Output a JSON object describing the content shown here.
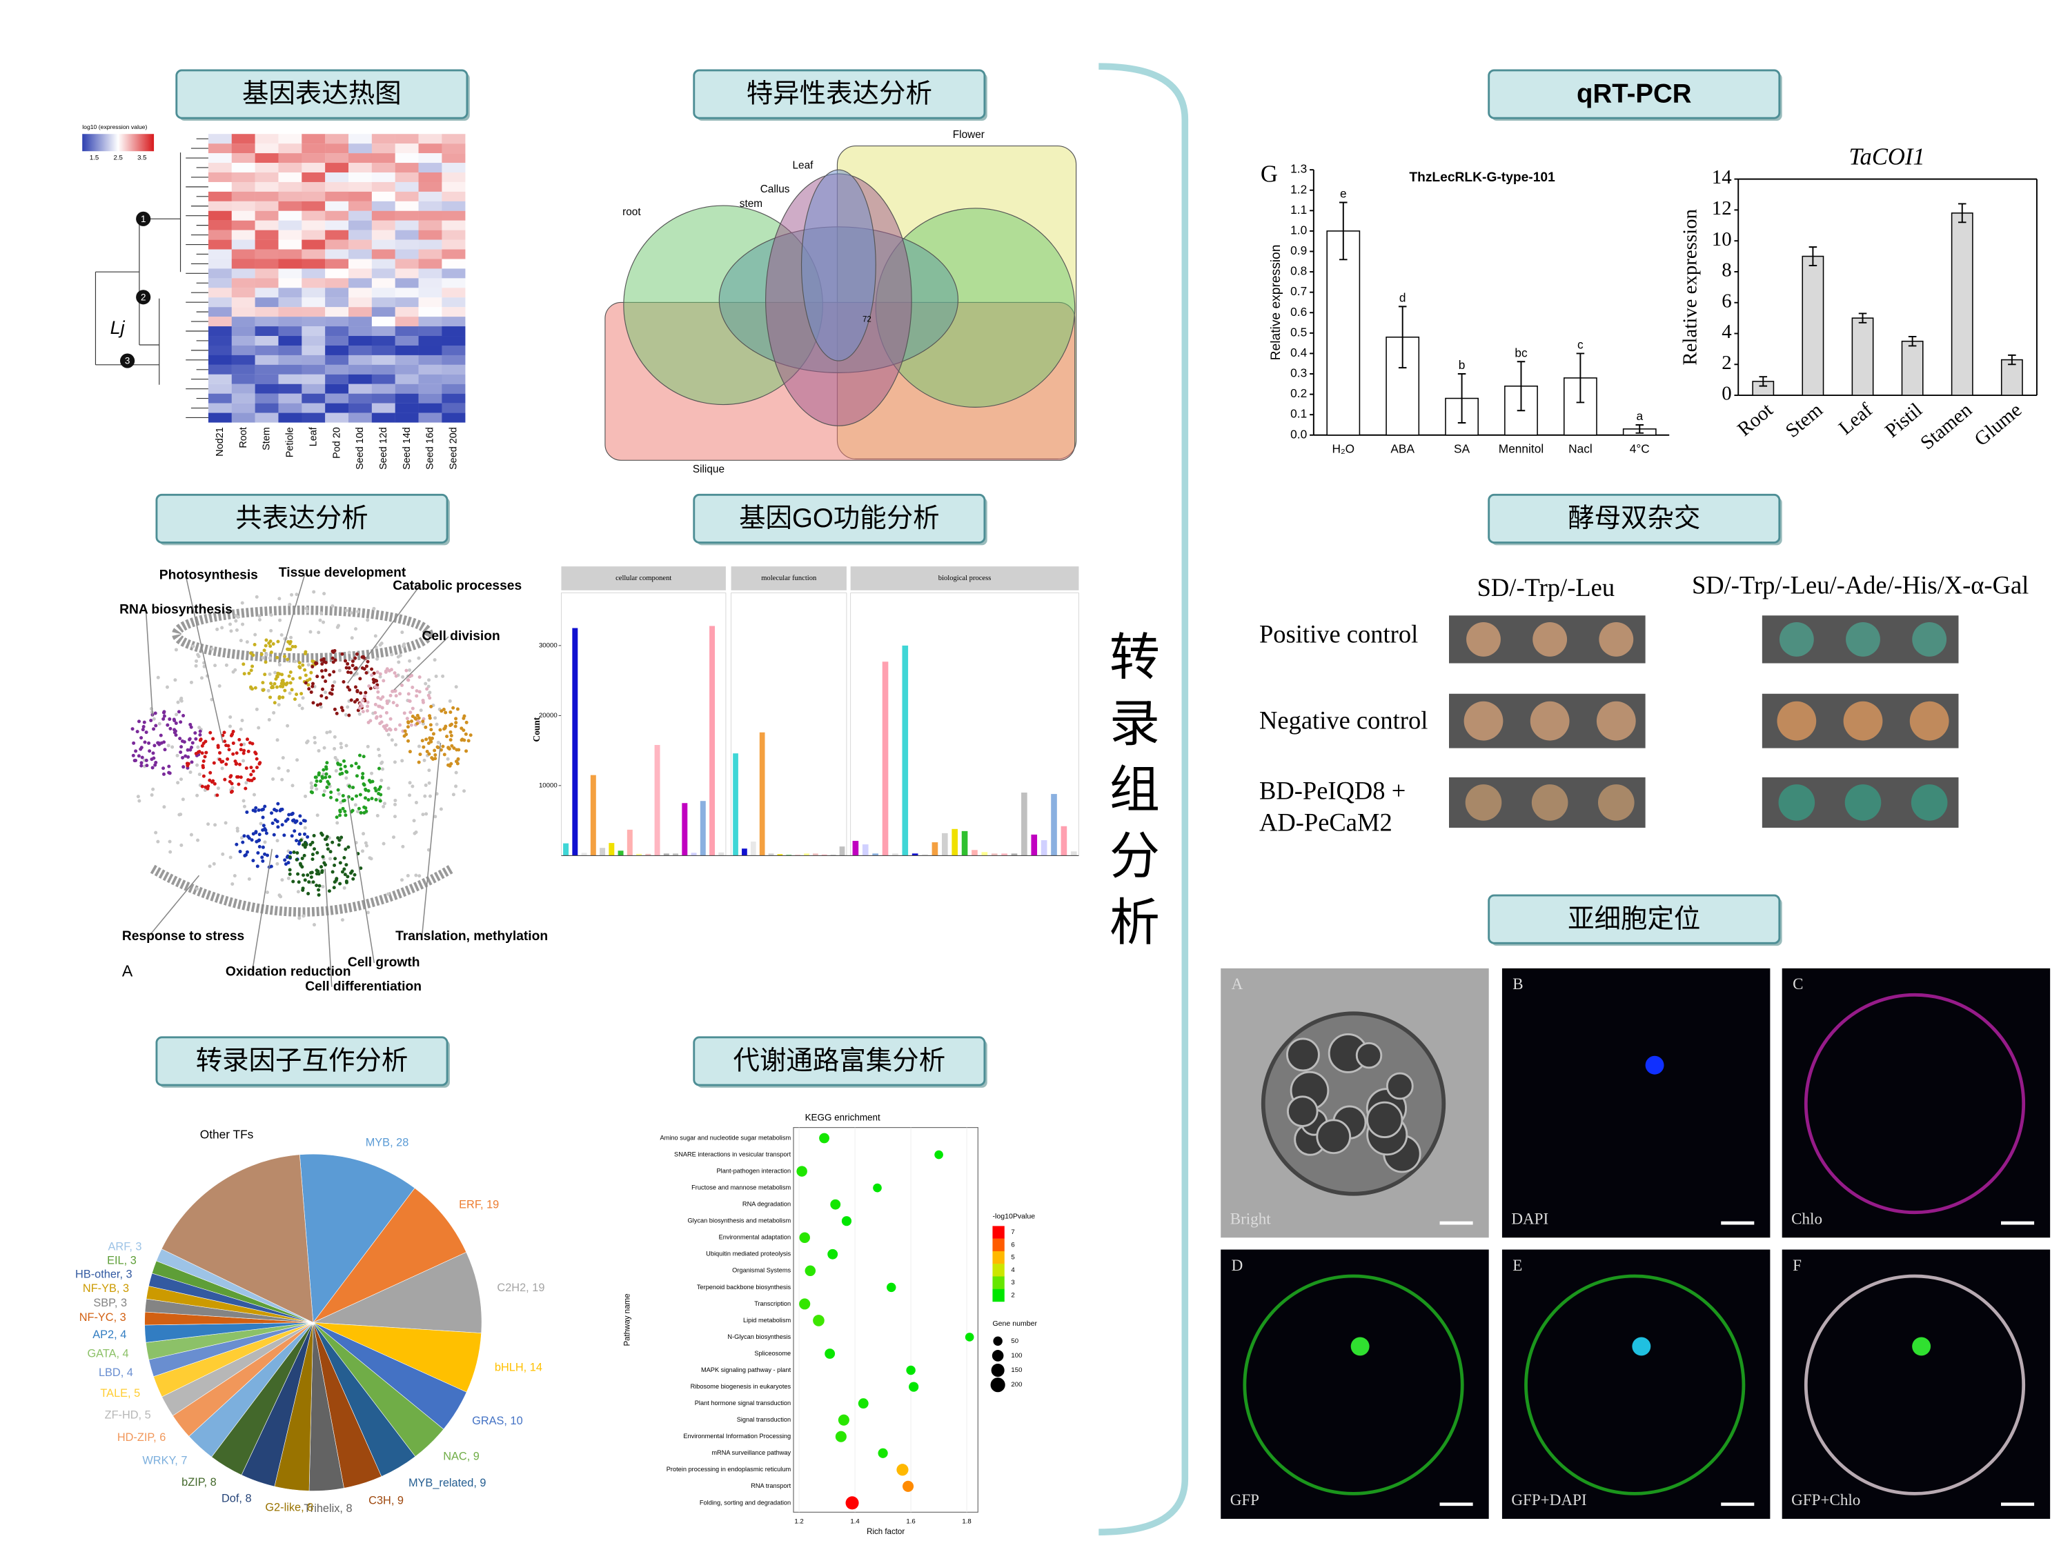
{
  "sections": {
    "heatmap": "基因表达热图",
    "specific": "特异性表达分析",
    "coexp": "共表达分析",
    "go": "基因GO功能分析",
    "tf": "转录因子互作分析",
    "kegg": "代谢通路富集分析",
    "qpcr": "qRT-PCR",
    "y2h": "酵母双杂交",
    "subcell": "亚细胞定位"
  },
  "side_title": "转录组分析",
  "heatmap": {
    "colorbar_title": "log10 (expression value)",
    "colorbar_ticks": [
      1.5,
      2.5,
      3.5
    ],
    "columns": [
      "Nod21",
      "Root",
      "Stem",
      "Petiole",
      "Leaf",
      "Pod 20",
      "Seed 10d",
      "Seed 12d",
      "Seed 14d",
      "Seed 16d",
      "Seed 20d"
    ],
    "tree_label": "Lj",
    "clusters": [
      "1",
      "2",
      "3"
    ]
  },
  "venn": {
    "sets": [
      "root",
      "Leaf",
      "Callus",
      "stem",
      "Flower",
      "Silique"
    ],
    "center": "72"
  },
  "network": {
    "labels": [
      "RNA biosynthesis",
      "Photosynthesis",
      "Tissue development",
      "Catabolic processes",
      "Cell division",
      "Response to stress",
      "Oxidation reduction",
      "Cell growth",
      "Cell differentiation",
      "Translation, methylation"
    ],
    "panel": "A"
  },
  "yeast": {
    "media": [
      "SD/-Trp/-Leu",
      "SD/-Trp/-Leu/-Ade/-His/X-α-Gal"
    ],
    "rows": [
      "Positive control",
      "Negative control",
      "BD-PeIQD8 +",
      "AD-PeCaM2"
    ]
  },
  "localization": {
    "panels": [
      {
        "letter": "A",
        "label": "Bright"
      },
      {
        "letter": "B",
        "label": "DAPI"
      },
      {
        "letter": "C",
        "label": "Chlo"
      },
      {
        "letter": "D",
        "label": "GFP"
      },
      {
        "letter": "E",
        "label": "GFP+DAPI"
      },
      {
        "letter": "F",
        "label": "GFP+Chlo"
      }
    ]
  },
  "chart_data": [
    {
      "type": "bar",
      "panel": "G",
      "title": "ThzLecRLK-G-type-101",
      "y_label": "Relative expression",
      "categories": [
        "H₂O",
        "ABA",
        "SA",
        "Mennitol",
        "Nacl",
        "4°C"
      ],
      "values": [
        1.0,
        0.48,
        0.18,
        0.24,
        0.28,
        0.03
      ],
      "errors": [
        0.14,
        0.15,
        0.12,
        0.12,
        0.12,
        0.02
      ],
      "annotations": [
        "e",
        "d",
        "b",
        "bc",
        "c",
        "a"
      ],
      "color": "#ffffff",
      "ylim": [
        0,
        1.3
      ],
      "yticks": [
        {
          "value": 0,
          "label": "0.0"
        },
        0.1,
        0.2,
        0.3,
        0.4,
        0.5,
        0.6,
        0.7,
        0.8,
        0.9,
        {
          "value": 1,
          "label": "1.0"
        },
        1.1,
        1.2,
        1.3
      ],
      "frame": false
    },
    {
      "type": "bar",
      "title": "TaCOI1",
      "y_label": "Relative expression",
      "categories": [
        "Root",
        "Stem",
        "Leaf",
        "Pistil",
        "Stamen",
        "Glume"
      ],
      "values": [
        0.9,
        9.0,
        5.0,
        3.5,
        11.8,
        2.3
      ],
      "errors": [
        0.3,
        0.6,
        0.3,
        0.3,
        0.6,
        0.3
      ],
      "color": "#d9d9d9",
      "ylim": [
        0,
        14
      ],
      "yticks": [
        0,
        2,
        4,
        6,
        8,
        10,
        12,
        14
      ],
      "frame": true
    },
    {
      "type": "facet-bar",
      "y_label": "Count",
      "ylim": [
        0,
        36000
      ],
      "yticks": [
        10000,
        20000,
        30000
      ],
      "palette": [
        "#3fd6d6",
        "#1010d0",
        "#e8e8e8",
        "#f4a040",
        "#d0d0d0",
        "#f0e000",
        "#30c030",
        "#ffb0b0",
        "#ffff90",
        "#f0c0c0",
        "#ffb6c1",
        "#b0b0b0",
        "#c0c0c0",
        "#c000c0",
        "#d0d0ff",
        "#8ab0e0",
        "#ffa0b0",
        "#e0e0e0"
      ],
      "facets": [
        {
          "name": "cellular component",
          "values": [
            1750,
            32500,
            400,
            11500,
            1100,
            1800,
            700,
            3700,
            250,
            250,
            15800,
            300,
            300,
            7500,
            400,
            7800,
            32800,
            450
          ]
        },
        {
          "name": "molecular function",
          "values": [
            14600,
            1000,
            2000,
            17600,
            300,
            200,
            100,
            100,
            300,
            300,
            150,
            100,
            1300
          ]
        },
        {
          "name": "biological process",
          "values": [
            2100,
            1600,
            300,
            27700,
            300,
            30000,
            300,
            200,
            1900,
            3200,
            3800,
            3500,
            800,
            500,
            300,
            300,
            300,
            9000,
            3000,
            2200,
            8800,
            4200,
            600
          ]
        }
      ]
    },
    {
      "type": "pie",
      "values": [
        28,
        19,
        19,
        14,
        10,
        9,
        9,
        9,
        8,
        8,
        8,
        8,
        7,
        6,
        5,
        5,
        4,
        4,
        4,
        3,
        3,
        3,
        3,
        3,
        3,
        40
      ],
      "value_labels": [
        "MYB, 28",
        "ERF, 19",
        "C2H2, 19",
        "bHLH, 14",
        "GRAS, 10",
        "NAC, 9",
        "MYB_related, 9",
        "C3H, 9",
        "Trihelix, 8",
        "G2-like, 8",
        "Dof, 8",
        "bZIP, 8",
        "WRKY, 7",
        "HD-ZIP, 6",
        "ZF-HD, 5",
        "TALE, 5",
        "LBD, 4",
        "GATA, 4",
        "AP2, 4",
        "NF-YC, 3",
        "SBP, 3",
        "NF-YB, 3",
        "HB-other, 3",
        "EIL, 3",
        "ARF, 3",
        null
      ],
      "other_label": "Other TFs",
      "colors": [
        "#5b9bd5",
        "#ed7d31",
        "#a5a5a5",
        "#ffc000",
        "#4472c4",
        "#70ad47",
        "#255e91",
        "#9e480e",
        "#636363",
        "#997300",
        "#264478",
        "#43682b",
        "#7cafdd",
        "#f1975a",
        "#b7b7b7",
        "#ffcd33",
        "#698ed0",
        "#8cc168",
        "#327dc2",
        "#d26012",
        "#848484",
        "#cc9a00",
        "#335aa1",
        "#5e9e37",
        "#9dc3e6",
        "#b98a6a"
      ]
    },
    {
      "type": "scatter",
      "title": "KEGG enrichment",
      "x_label": "Rich factor",
      "y_label": "Pathway name",
      "categories": [
        "Amino sugar and nucleotide sugar metabolism",
        "SNARE interactions in vesicular transport",
        "Plant-pathogen interaction",
        "Fructose and mannose metabolism",
        "RNA degradation",
        "Glycan biosynthesis and metabolism",
        "Environmental adaptation",
        "Ubiquitin mediated proteolysis",
        "Organismal Systems",
        "Terpenoid backbone biosynthesis",
        "Transcription",
        "Lipid metabolism",
        "N-Glycan biosynthesis",
        "Spliceosome",
        "MAPK signaling pathway - plant",
        "Ribosome biogenesis in eukaryotes",
        "Plant hormone signal transduction",
        "Signal transduction",
        "Environmental Information Processing",
        "mRNA surveillance pathway",
        "Protein processing in endoplasmic reticulum",
        "RNA transport",
        "Folding, sorting and degradation"
      ],
      "x": [
        1.29,
        1.7,
        1.21,
        1.48,
        1.33,
        1.37,
        1.22,
        1.32,
        1.24,
        1.53,
        1.22,
        1.27,
        1.81,
        1.31,
        1.6,
        1.61,
        1.43,
        1.36,
        1.35,
        1.5,
        1.57,
        1.59,
        1.39
      ],
      "neg_log10_p": [
        2.2,
        1.5,
        2.3,
        1.8,
        2.2,
        2.0,
        2.4,
        2.1,
        2.4,
        1.9,
        2.5,
        2.6,
        1.5,
        2.1,
        1.7,
        1.8,
        2.2,
        2.4,
        2.4,
        2.2,
        5.0,
        5.5,
        7.0
      ],
      "gene_number": [
        70,
        40,
        80,
        40,
        70,
        60,
        80,
        70,
        80,
        50,
        90,
        100,
        40,
        70,
        50,
        60,
        70,
        90,
        90,
        60,
        110,
        90,
        150
      ],
      "xlim": [
        1.18,
        1.84
      ],
      "xticks": [
        1.2,
        1.4,
        1.6,
        1.8
      ],
      "color_legend": {
        "title": "-log10Pvalue",
        "ticks": [
          7,
          6,
          5,
          4,
          3,
          2
        ]
      },
      "size_legend": {
        "title": "Gene number",
        "ticks": [
          50,
          100,
          150,
          200
        ]
      }
    }
  ]
}
